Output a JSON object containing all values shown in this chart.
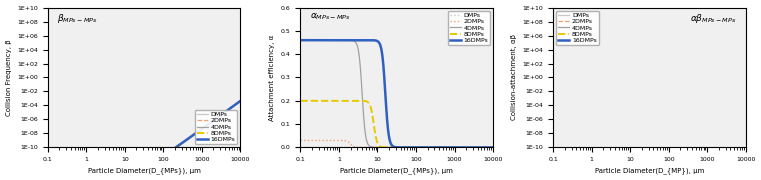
{
  "panel_a": {
    "title": "β_{MPs-MPs}",
    "xlabel": "Particle Diameter(D_{MPs}), μm",
    "ylabel": "Collision Frequency, β",
    "xlim_log": [
      -1,
      4
    ],
    "ylim_log": [
      -10,
      10
    ],
    "series": [
      {
        "label": "DMPs",
        "color": "#c8c8c8",
        "linestyle": "-",
        "lw": 0.9,
        "D": 1.0
      },
      {
        "label": "2DMPs",
        "color": "#f0a070",
        "linestyle": "--",
        "lw": 0.9,
        "D": 2.0
      },
      {
        "label": "4DMPs",
        "color": "#a0a0a0",
        "linestyle": "-",
        "lw": 0.9,
        "D": 4.0
      },
      {
        "label": "8DMPs",
        "color": "#e8c800",
        "linestyle": "--",
        "lw": 1.4,
        "D": 8.0
      },
      {
        "label": "16DMPs",
        "color": "#3060c0",
        "linestyle": "-",
        "lw": 1.8,
        "D": 16.0
      }
    ]
  },
  "panel_b": {
    "title": "α_{MPs-MPs}",
    "xlabel": "Particle Diameter(D_{MPs}), μm",
    "ylabel": "Attachment efficiency, α",
    "xlim_log": [
      -1,
      4
    ],
    "ylim": [
      0.0,
      0.6
    ],
    "series": [
      {
        "label": "DMPs",
        "color": "#c8c8c8",
        "linestyle": ":",
        "lw": 1.0,
        "D": 1.0,
        "plateau": 0.0,
        "drop_steepness": 10
      },
      {
        "label": "2DMPs",
        "color": "#f0a070",
        "linestyle": ":",
        "lw": 1.0,
        "D": 2.0,
        "plateau": 0.03,
        "drop_steepness": 10
      },
      {
        "label": "4DMPs",
        "color": "#a0a0a0",
        "linestyle": "-",
        "lw": 0.9,
        "D": 4.0,
        "plateau": 0.46,
        "drop_steepness": 10
      },
      {
        "label": "8DMPs",
        "color": "#e8c800",
        "linestyle": "--",
        "lw": 1.4,
        "D": 8.0,
        "plateau": 0.2,
        "drop_steepness": 10
      },
      {
        "label": "16DMPs",
        "color": "#3060c0",
        "linestyle": "-",
        "lw": 1.8,
        "D": 16.0,
        "plateau": 0.46,
        "drop_steepness": 10
      }
    ]
  },
  "panel_c": {
    "title": "αβ_{MPs-MPs}",
    "xlabel": "Particle Diameter(D_{MP}), μm",
    "ylabel": "Collision-attachment, αβ",
    "xlim_log": [
      -1,
      4
    ],
    "ylim_log": [
      -10,
      10
    ],
    "series": [
      {
        "label": "DMPs",
        "color": "#c8c8c8",
        "linestyle": "-",
        "lw": 0.9,
        "D": 1.0,
        "plateau": 0.0
      },
      {
        "label": "2DMPs",
        "color": "#f0a070",
        "linestyle": "--",
        "lw": 0.9,
        "D": 2.0,
        "plateau": 0.03
      },
      {
        "label": "4DMPs",
        "color": "#a0a0a0",
        "linestyle": "-",
        "lw": 0.9,
        "D": 4.0,
        "plateau": 0.46
      },
      {
        "label": "8DMPs",
        "color": "#e8c800",
        "linestyle": "--",
        "lw": 1.4,
        "D": 8.0,
        "plateau": 0.2
      },
      {
        "label": "16DMPs",
        "color": "#3060c0",
        "linestyle": "-",
        "lw": 1.8,
        "D": 16.0,
        "plateau": 0.46
      }
    ]
  },
  "bg_color": "#f0f0f0",
  "legend_fontsize": 4.5,
  "tick_fontsize": 4.5,
  "label_fontsize": 5.0,
  "title_fontsize": 6.5
}
